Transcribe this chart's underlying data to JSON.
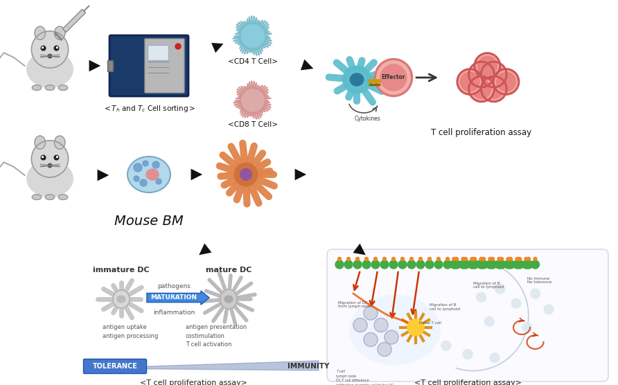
{
  "background_color": "#ffffff",
  "labels": {
    "sorter_pre": "<T",
    "sorter_h": "h",
    "sorter_mid": " and T",
    "sorter_c": "c",
    "sorter_post": " Cell sorting>",
    "cd4": "<CD4 T Cell>",
    "cd8": "<CD8 T Cell>",
    "proliferation": "T cell proliferation assay",
    "mouse_bm": "Mouse BM",
    "t_cell_assay1": "<T cell proliferation assay>",
    "t_cell_assay2": "<T cell proliferation assay>",
    "immature_dc": "immature DC",
    "mature_dc": "mature DC",
    "maturation": "MATURATION",
    "pathogens": "pathogens",
    "inflammation": "inflammation",
    "antigen_uptake": "antigen uptake\nantigen processing",
    "antigen_presentation": "antigen presentation\ncostimulation\nT cell activation",
    "tolerance": "TOLERANCE",
    "immunity": "IMMUNITY",
    "effector": "Effector",
    "cytokines": "Cytokines"
  },
  "figsize": [
    8.92,
    5.56
  ],
  "dpi": 100
}
